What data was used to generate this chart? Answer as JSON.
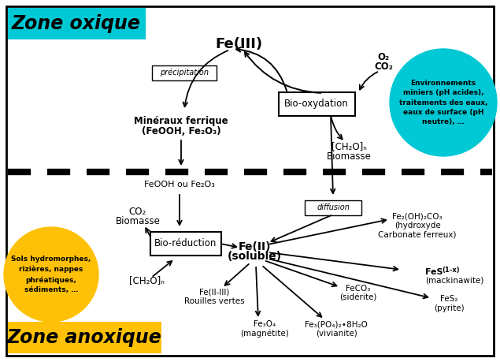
{
  "bg_color": "#ffffff",
  "zone_oxique_color": "#00c8d4",
  "zone_anoxique_color": "#ffc107",
  "cyan_circle_color": "#00c8d4",
  "yellow_circle_color": "#ffc107",
  "zone_oxique_text": "Zone oxique",
  "zone_anoxique_text": "Zone anoxique",
  "fe3_text": "Fe(III)",
  "bio_oxydation_text": "Bio-oxydation",
  "bio_reduction_text": "Bio-réduction",
  "precipitation_text": "précipitation",
  "diffusion_text": "diffusion",
  "mineraux_l1": "Minéraux ferrique",
  "mineraux_l2": "(FeOOH, Fe₂O₃)",
  "feooh_text": "FeOOH ou Fe₂O₃",
  "co2_text": "CO₂",
  "biomasse_text": "Biomasse",
  "ch2o_n_text": "[CH₂O]ₙ",
  "o2_text": "O₂",
  "co2_text2": "CO₂",
  "ch2o_bio_text": "[CH₂O]ₙ",
  "biomasse2_text": "Biomasse",
  "cyan_circle_text": "Environnements\nminiers (pH acides),\ntraitements des eaux,\neaux de surface (pH\nneutre), …",
  "yellow_circle_text": "Sols hydromorphes,\nrizières, nappes\nphréatiques,\nsédiments, …",
  "fe2_l1": "Fe(II)",
  "fe2_l2": "(soluble)",
  "fe2oh2co3_text": "Fe₂(OH)₂CO₃\n(hydroxyde\nCarbonate ferreux)",
  "fes1x_l1": "FeS",
  "fes1x_sub": "(1-x)",
  "fes1x_l2": "(mackinawite)",
  "fes2_text": "FeS₂\n(pyrite)",
  "feco3_text": "FeCO₃\n(sidérite)",
  "fe2iii_text": "Fe(II-III)\nRouilles vertes",
  "fe3o4_text": "Fe₃O₄\n(magnétite)",
  "fe3po4_text": "Fe₃(PO₄)₂∙8H₂O\n(vivianite)"
}
